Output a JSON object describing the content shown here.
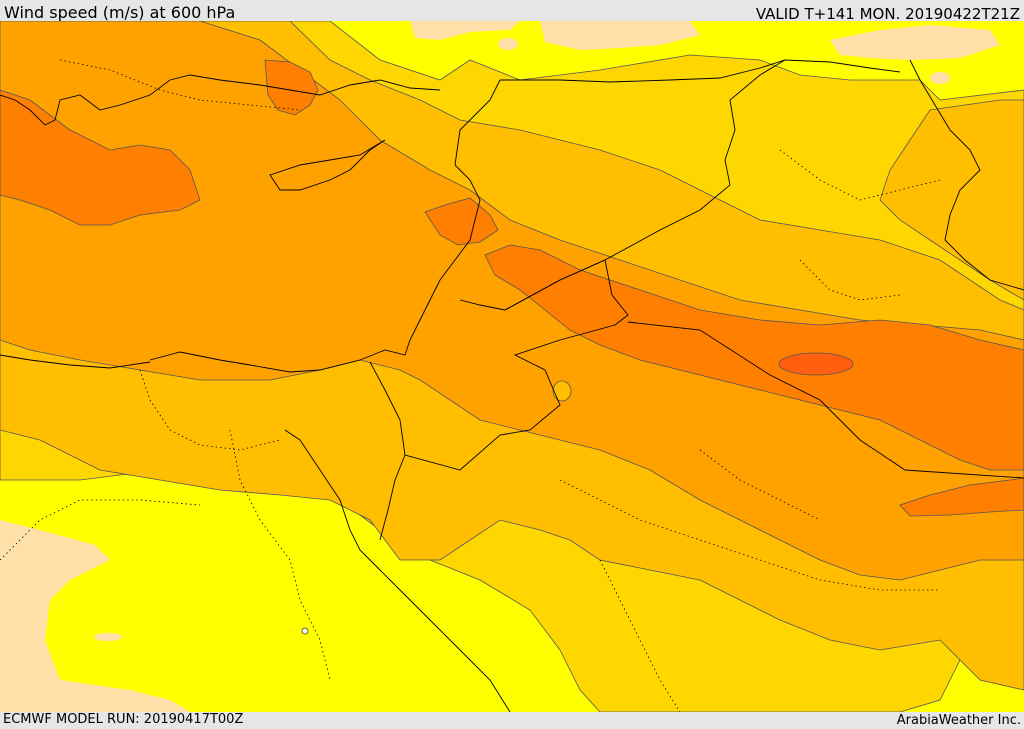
{
  "header": {
    "title": "Wind speed (m/s) at 600 hPa",
    "valid": "VALID T+141 MON. 20190422T21Z"
  },
  "footer": {
    "model_run": "ECMWF MODEL RUN: 20190417T00Z",
    "credit": "ArabiaWeather Inc."
  },
  "colors": {
    "band_lowest": "#ffe0a8",
    "band_low": "#ffff00",
    "band_mid_low": "#ffd700",
    "band_mid": "#ffbf00",
    "band_mid_high": "#ffa200",
    "band_high": "#ff7f00",
    "band_highest": "#ff6010",
    "contour_line": "#555555",
    "border_line": "#000000"
  }
}
